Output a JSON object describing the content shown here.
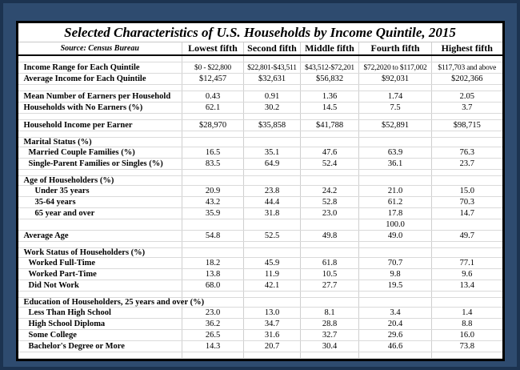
{
  "frame": {
    "background_color": "#2E4B6F",
    "outer_border_color": "#1C3350",
    "table_border_color": "#000000"
  },
  "chart_data": {
    "type": "table",
    "title": "Selected Characteristics of U.S. Households by Income Quintile, 2015",
    "source": "Source: Census Bureau",
    "columns": [
      "Lowest fifth",
      "Second fifth",
      "Middle fifth",
      "Fourth fifth",
      "Highest fifth"
    ],
    "rows": [
      {
        "type": "spacer"
      },
      {
        "type": "data",
        "label": "Income Range for Each Quintile",
        "indent": 0,
        "values": [
          "$0 - $22,800",
          "$22,801-$43,511",
          "$43,512-$72,201",
          "$72,2020 to $117,002",
          "$117,703 and above"
        ]
      },
      {
        "type": "data",
        "label": "Average Income for Each Quintile",
        "indent": 0,
        "values": [
          "$12,457",
          "$32,631",
          "$56,832",
          "$92,031",
          "$202,366"
        ]
      },
      {
        "type": "spacer"
      },
      {
        "type": "data",
        "label": "Mean Number of Earners per Household",
        "indent": 0,
        "values": [
          "0.43",
          "0.91",
          "1.36",
          "1.74",
          "2.05"
        ]
      },
      {
        "type": "data",
        "label": "Households with No Earners (%)",
        "indent": 0,
        "values": [
          "62.1",
          "30.2",
          "14.5",
          "7.5",
          "3.7"
        ]
      },
      {
        "type": "spacer"
      },
      {
        "type": "data",
        "label": "Household Income per Earner",
        "indent": 0,
        "values": [
          "$28,970",
          "$35,858",
          "$41,788",
          "$52,891",
          "$98,715"
        ]
      },
      {
        "type": "spacer"
      },
      {
        "type": "section",
        "label": "Marital Status (%)"
      },
      {
        "type": "data",
        "label": "Married Couple Families (%)",
        "indent": 1,
        "values": [
          "16.5",
          "35.1",
          "47.6",
          "63.9",
          "76.3"
        ]
      },
      {
        "type": "data",
        "label": "Single-Parent Families or Singles (%)",
        "indent": 1,
        "values": [
          "83.5",
          "64.9",
          "52.4",
          "36.1",
          "23.7"
        ]
      },
      {
        "type": "spacer"
      },
      {
        "type": "section",
        "label": "Age of Householders (%)"
      },
      {
        "type": "data",
        "label": "Under 35 years",
        "indent": 2,
        "values": [
          "20.9",
          "23.8",
          "24.2",
          "21.0",
          "15.0"
        ]
      },
      {
        "type": "data",
        "label": "35-64 years",
        "indent": 2,
        "values": [
          "43.2",
          "44.4",
          "52.8",
          "61.2",
          "70.3"
        ]
      },
      {
        "type": "data",
        "label": "65 year and over",
        "indent": 2,
        "values": [
          "35.9",
          "31.8",
          "23.0",
          "17.8",
          "14.7"
        ]
      },
      {
        "type": "data",
        "label": "",
        "indent": 0,
        "values": [
          "",
          "",
          "",
          "100.0",
          ""
        ]
      },
      {
        "type": "data",
        "label": "Average Age",
        "indent": 0,
        "values": [
          "54.8",
          "52.5",
          "49.8",
          "49.0",
          "49.7"
        ]
      },
      {
        "type": "spacer"
      },
      {
        "type": "section",
        "label": "Work Status of Householders (%)"
      },
      {
        "type": "data",
        "label": "Worked Full-Time",
        "indent": 1,
        "values": [
          "18.2",
          "45.9",
          "61.8",
          "70.7",
          "77.1"
        ]
      },
      {
        "type": "data",
        "label": "Worked Part-Time",
        "indent": 1,
        "values": [
          "13.8",
          "11.9",
          "10.5",
          "9.8",
          "9.6"
        ]
      },
      {
        "type": "data",
        "label": "Did Not Work",
        "indent": 1,
        "values": [
          "68.0",
          "42.1",
          "27.7",
          "19.5",
          "13.4"
        ]
      },
      {
        "type": "spacer"
      },
      {
        "type": "section",
        "label": "Education of Householders, 25 years and over (%)"
      },
      {
        "type": "data",
        "label": "Less Than High School",
        "indent": 1,
        "values": [
          "23.0",
          "13.0",
          "8.1",
          "3.4",
          "1.4"
        ]
      },
      {
        "type": "data",
        "label": "High School Diploma",
        "indent": 1,
        "values": [
          "36.2",
          "34.7",
          "28.8",
          "20.4",
          "8.8"
        ]
      },
      {
        "type": "data",
        "label": "Some College",
        "indent": 1,
        "values": [
          "26.5",
          "31.6",
          "32.7",
          "29.6",
          "16.0"
        ]
      },
      {
        "type": "data",
        "label": "Bachelor's Degree or More",
        "indent": 1,
        "values": [
          "14.3",
          "20.7",
          "30.4",
          "46.6",
          "73.8"
        ]
      },
      {
        "type": "spacer"
      }
    ]
  }
}
